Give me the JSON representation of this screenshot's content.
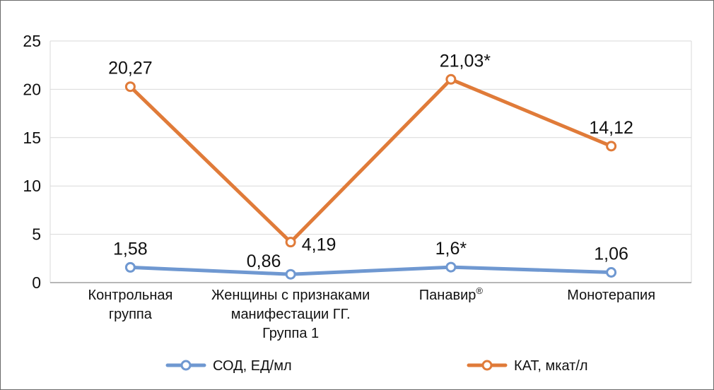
{
  "chart_data": {
    "type": "line",
    "title": "",
    "xlabel": "",
    "ylabel": "",
    "ylim": [
      0,
      25
    ],
    "yticks": [
      0,
      5,
      10,
      15,
      20,
      25
    ],
    "grid": true,
    "legend_position": "bottom",
    "categories": [
      [
        "Контрольная",
        "группа"
      ],
      [
        "Женщины с признаками",
        "манифестации ГГ.",
        "Группа 1"
      ],
      [
        "Панавир®"
      ],
      [
        "Монотерапия"
      ]
    ],
    "series": [
      {
        "name": "СОД, ЕД/мл",
        "color": "#6f98d1",
        "values": [
          1.58,
          0.86,
          1.6,
          1.06
        ],
        "labels": [
          "1,58",
          "0,86",
          "1,6*",
          "1,06"
        ]
      },
      {
        "name": "КАТ, мкат/л",
        "color": "#e07b39",
        "values": [
          20.27,
          4.19,
          21.03,
          14.12
        ],
        "labels": [
          "20,27",
          "4,19",
          "21,03*",
          "14,12"
        ]
      }
    ]
  }
}
